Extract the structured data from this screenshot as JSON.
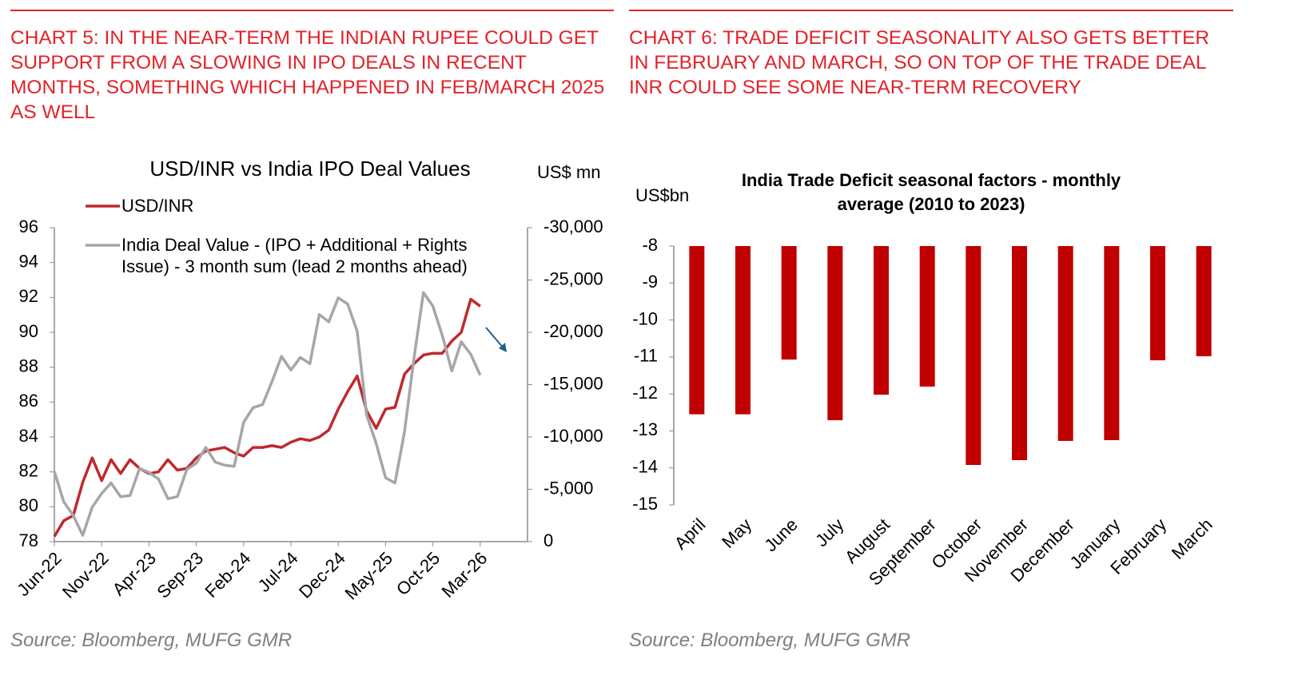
{
  "chart_data": [
    {
      "type": "line",
      "heading": "CHART 5: IN THE NEAR-TERM THE INDIAN RUPEE COULD GET SUPPORT FROM A SLOWING IN IPO DEALS IN RECENT MONTHS, SOMETHING WHICH HAPPENED IN FEB/MARCH 2025 AS WELL",
      "title": "USD/INR vs India IPO Deal Values",
      "y2_label": "US$ mn",
      "categories": [
        "Jun-22",
        null,
        null,
        null,
        null,
        "Nov-22",
        null,
        null,
        null,
        null,
        "Apr-23",
        null,
        null,
        null,
        null,
        "Sep-23",
        null,
        null,
        null,
        null,
        "Feb-24",
        null,
        null,
        null,
        null,
        "Jul-24",
        null,
        null,
        null,
        null,
        "Dec-24",
        null,
        null,
        null,
        null,
        "May-25",
        null,
        null,
        null,
        null,
        "Oct-25",
        null,
        null,
        null,
        null,
        "Mar-26",
        null,
        null,
        null,
        null,
        null
      ],
      "series": [
        {
          "name": "USD/INR",
          "color": "#c0282d",
          "values": [
            78.3,
            79.2,
            79.5,
            81.4,
            82.8,
            81.5,
            82.7,
            81.9,
            82.7,
            82.2,
            81.9,
            82.0,
            82.7,
            82.1,
            82.2,
            82.8,
            83.2,
            83.3,
            83.4,
            83.1,
            82.9,
            83.4,
            83.4,
            83.5,
            83.4,
            83.7,
            83.9,
            83.8,
            84.0,
            84.4,
            85.6,
            86.6,
            87.5,
            85.5,
            84.5,
            85.6,
            85.7,
            87.6,
            88.2,
            88.7,
            88.8,
            88.8,
            89.5,
            90.0,
            91.9,
            91.5,
            null,
            null,
            null,
            null,
            null
          ]
        },
        {
          "name": "India Deal Value - (IPO + Additional + Rights Issue) - 3 month sum (lead 2 months ahead)",
          "color": "#a6a6a6",
          "axis": "y2",
          "values": [
            -6700,
            -3800,
            -2500,
            -600,
            -3300,
            -4600,
            -5600,
            -4300,
            -4400,
            -7000,
            -6600,
            -6000,
            -4100,
            -4300,
            -6900,
            -7500,
            -9000,
            -7600,
            -7300,
            -7200,
            -11400,
            -12800,
            -13100,
            -15300,
            -17700,
            -16400,
            -17600,
            -17000,
            -21700,
            -21000,
            -23300,
            -22700,
            -20100,
            -12100,
            -9400,
            -6100,
            -5600,
            -10500,
            -17500,
            -23800,
            -22500,
            -19700,
            -16300,
            -19100,
            -17900,
            -15900,
            null,
            null,
            null,
            null,
            null
          ]
        }
      ],
      "ylim": [
        78,
        96
      ],
      "yticks": [
        78,
        80,
        82,
        84,
        86,
        88,
        90,
        92,
        94,
        96
      ],
      "y2lim": [
        0,
        -30000
      ],
      "y2ticks": [
        0,
        {
          "value": -5000,
          "label": "-5,000"
        },
        {
          "value": -10000,
          "label": "-10,000"
        },
        {
          "value": -15000,
          "label": "-15,000"
        },
        {
          "value": -20000,
          "label": "-20,000"
        },
        {
          "value": -25000,
          "label": "-25,000"
        },
        {
          "value": -30000,
          "label": "-30,000"
        }
      ],
      "source": "Source: Bloomberg, MUFG GMR"
    },
    {
      "type": "bar",
      "heading": "CHART 6: TRADE DEFICIT SEASONALITY ALSO GETS BETTER IN FEBRUARY AND MARCH, SO ON TOP OF THE TRADE DEAL INR COULD SEE SOME NEAR-TERM RECOVERY",
      "title": "India Trade Deficit seasonal factors - monthly average (2010 to 2023)",
      "y_label": "US$bn",
      "categories": [
        "April",
        "May",
        "June",
        "July",
        "August",
        "September",
        "October",
        "November",
        "December",
        "January",
        "February",
        "March"
      ],
      "values": [
        -12.55,
        -12.55,
        -11.07,
        -12.71,
        -12.02,
        -11.8,
        -13.92,
        -13.79,
        -13.27,
        -13.25,
        -11.09,
        -10.98
      ],
      "color": "#c00000",
      "ylim": [
        -15,
        -8
      ],
      "yticks": [
        -15,
        -14,
        -13,
        -12,
        -11,
        -10,
        -9,
        -8
      ],
      "source": "Source: Bloomberg, MUFG GMR"
    }
  ]
}
